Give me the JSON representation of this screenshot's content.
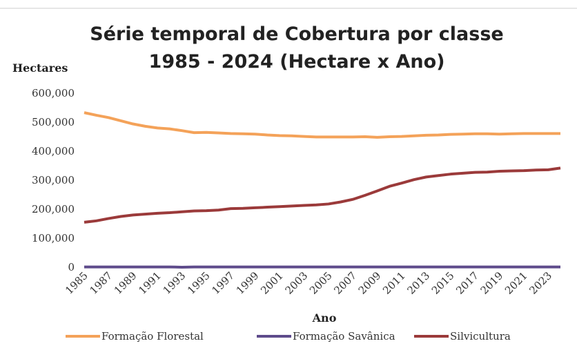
{
  "chart_data": {
    "type": "line",
    "title": [
      "Série temporal de Cobertura por classe",
      "1985 - 2024 (Hectare x Ano)"
    ],
    "y_label": "Hectares",
    "x_label": "Ano",
    "x": [
      1985,
      1986,
      1987,
      1988,
      1989,
      1990,
      1991,
      1992,
      1993,
      1994,
      1995,
      1996,
      1997,
      1998,
      1999,
      2000,
      2001,
      2002,
      2003,
      2004,
      2005,
      2006,
      2007,
      2008,
      2009,
      2010,
      2011,
      2012,
      2013,
      2014,
      2015,
      2016,
      2017,
      2018,
      2019,
      2020,
      2021,
      2022,
      2023,
      2024
    ],
    "series": [
      {
        "name": "Formação Florestal",
        "color": "#f4a259",
        "values": [
          533000,
          524000,
          516000,
          505000,
          494000,
          486000,
          480000,
          477000,
          471000,
          464000,
          465000,
          463000,
          461000,
          460000,
          459000,
          456000,
          454000,
          453000,
          451000,
          449000,
          449000,
          449000,
          449000,
          450000,
          448000,
          450000,
          451000,
          453000,
          455000,
          456000,
          458000,
          459000,
          460000,
          460000,
          459000,
          460000,
          461000,
          461000,
          461000,
          461000
        ]
      },
      {
        "name": "Formação Savânica",
        "color": "#5e4b8b",
        "values": [
          1000,
          1000,
          1000,
          1000,
          1000,
          1000,
          1000,
          1000,
          0,
          1000,
          1000,
          1000,
          1000,
          1000,
          1000,
          1000,
          1000,
          1000,
          1000,
          1000,
          1000,
          1000,
          1000,
          1000,
          1000,
          1000,
          1000,
          1000,
          1000,
          1000,
          1000,
          1000,
          1000,
          1000,
          1000,
          1000,
          1000,
          1000,
          1000,
          1000
        ]
      },
      {
        "name": "Silvicultura",
        "color": "#9b3a3a",
        "values": [
          155000,
          160000,
          168000,
          175000,
          180000,
          183000,
          186000,
          188000,
          191000,
          194000,
          195000,
          197000,
          202000,
          203000,
          205000,
          207000,
          209000,
          211000,
          213000,
          215000,
          218000,
          225000,
          234000,
          248000,
          263000,
          279000,
          290000,
          302000,
          311000,
          316000,
          321000,
          324000,
          327000,
          328000,
          331000,
          332000,
          333000,
          335000,
          336000,
          342000
        ]
      }
    ],
    "xlim": [
      1985,
      2024
    ],
    "xticks": [
      1985,
      1987,
      1989,
      1991,
      1993,
      1995,
      1997,
      1999,
      2001,
      2003,
      2005,
      2007,
      2009,
      2011,
      2013,
      2015,
      2017,
      2019,
      2021,
      2023
    ],
    "ylim": [
      0,
      600000
    ],
    "yticks": [
      0,
      {
        "value": 100000,
        "label": "100,000"
      },
      {
        "value": 200000,
        "label": "200,000"
      },
      {
        "value": 300000,
        "label": "300,000"
      },
      {
        "value": 400000,
        "label": "400,000"
      },
      {
        "value": 500000,
        "label": "500,000"
      },
      {
        "value": 600000,
        "label": "600,000"
      }
    ],
    "grid": false,
    "legend": "bottom"
  }
}
